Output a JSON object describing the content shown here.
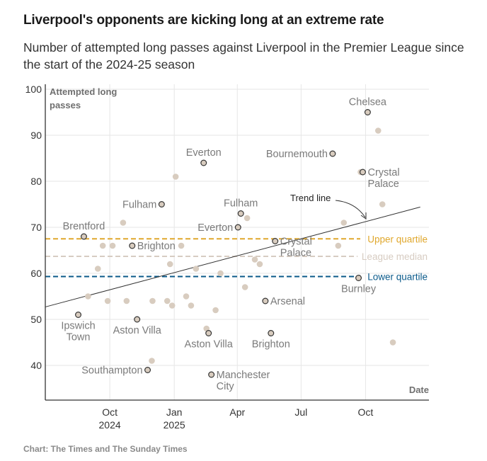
{
  "title": "Liverpool's opponents are kicking long at an extreme rate",
  "subtitle": "Number of attempted long passes against Liverpool in the Premier League since the start of the 2024-25 season",
  "source": "Chart: The Times and The Sunday Times",
  "colors": {
    "dot_fill": "#d8ccbf",
    "dot_stroke": "#333333",
    "grid": "#e6e6e6",
    "axis": "#333333",
    "upper_quartile": "#e0a82e",
    "median": "#d7ccc2",
    "lower_quartile": "#0b5a8a",
    "trend": "#333333",
    "label": "#7a7a7a"
  },
  "chart_data": {
    "type": "scatter",
    "title": "Liverpool's opponents are kicking long at an extreme rate",
    "xlabel": "Date",
    "ylabel": "Attempted long passes",
    "ylim": [
      33,
      100
    ],
    "xlim": [
      "2024-07-01",
      "2025-12-18"
    ],
    "y_ticks": [
      40,
      50,
      60,
      70,
      80,
      90,
      100
    ],
    "x_ticks": [
      {
        "date": "2024-10-01",
        "line1": "Oct",
        "line2": "2024"
      },
      {
        "date": "2025-01-01",
        "line1": "Jan",
        "line2": "2025"
      },
      {
        "date": "2025-04-01",
        "line1": "Apr",
        "line2": ""
      },
      {
        "date": "2025-07-01",
        "line1": "Jul",
        "line2": ""
      },
      {
        "date": "2025-10-01",
        "line1": "Oct",
        "line2": ""
      }
    ],
    "grid": true,
    "reference_lines": [
      {
        "name": "Upper quartile",
        "value": 67.5,
        "color_key": "upper_quartile"
      },
      {
        "name": "League median",
        "value": 63.7,
        "color_key": "median"
      },
      {
        "name": "Lower quartile",
        "value": 59.3,
        "color_key": "lower_quartile"
      }
    ],
    "trend_line": {
      "label": "Trend line",
      "start": {
        "date": "2024-07-01",
        "value": 52.7
      },
      "end": {
        "date": "2025-12-18",
        "value": 74.4
      }
    },
    "highlighted": [
      {
        "team": "Brentford",
        "date": "2024-08-25",
        "value": 68,
        "label_pos": "above"
      },
      {
        "team": "Ipswich Town",
        "date": "2024-08-17",
        "value": 51,
        "label_pos": "below"
      },
      {
        "team": "Brighton",
        "date": "2024-11-02",
        "value": 66,
        "label_pos": "right"
      },
      {
        "team": "Aston Villa",
        "date": "2024-11-09",
        "value": 50,
        "label_pos": "below"
      },
      {
        "team": "Southampton",
        "date": "2024-11-24",
        "value": 39,
        "label_pos": "left"
      },
      {
        "team": "Fulham",
        "date": "2024-12-14",
        "value": 75,
        "label_pos": "left"
      },
      {
        "team": "Everton",
        "date": "2025-02-12",
        "value": 84,
        "label_pos": "above"
      },
      {
        "team": "Aston Villa",
        "date": "2025-02-19",
        "value": 47,
        "label_pos": "below"
      },
      {
        "team": "Manchester City",
        "date": "2025-02-23",
        "value": 38,
        "label_pos": "right"
      },
      {
        "team": "Everton",
        "date": "2025-04-02",
        "value": 70,
        "label_pos": "left"
      },
      {
        "team": "Fulham",
        "date": "2025-04-06",
        "value": 73,
        "label_pos": "above"
      },
      {
        "team": "Arsenal",
        "date": "2025-05-11",
        "value": 54,
        "label_pos": "right"
      },
      {
        "team": "Brighton",
        "date": "2025-05-19",
        "value": 47,
        "label_pos": "below"
      },
      {
        "team": "Crystal Palace",
        "date": "2025-05-25",
        "value": 67,
        "label_pos": "right"
      },
      {
        "team": "Bournemouth",
        "date": "2025-08-15",
        "value": 86,
        "label_pos": "left"
      },
      {
        "team": "Burnley",
        "date": "2025-09-21",
        "value": 59,
        "label_pos": "below"
      },
      {
        "team": "Crystal Palace",
        "date": "2025-09-27",
        "value": 82,
        "label_pos": "right"
      },
      {
        "team": "Chelsea",
        "date": "2025-10-04",
        "value": 95,
        "label_pos": "above"
      }
    ],
    "other_points": [
      {
        "date": "2024-08-31",
        "value": 55
      },
      {
        "date": "2024-09-14",
        "value": 61
      },
      {
        "date": "2024-09-21",
        "value": 66
      },
      {
        "date": "2024-09-28",
        "value": 54
      },
      {
        "date": "2024-10-05",
        "value": 66
      },
      {
        "date": "2024-10-20",
        "value": 71
      },
      {
        "date": "2024-10-25",
        "value": 54
      },
      {
        "date": "2024-11-30",
        "value": 41
      },
      {
        "date": "2024-12-01",
        "value": 54
      },
      {
        "date": "2024-12-22",
        "value": 54
      },
      {
        "date": "2024-12-26",
        "value": 62
      },
      {
        "date": "2024-12-29",
        "value": 53
      },
      {
        "date": "2025-01-03",
        "value": 81
      },
      {
        "date": "2025-01-11",
        "value": 66
      },
      {
        "date": "2025-01-18",
        "value": 55
      },
      {
        "date": "2025-01-25",
        "value": 53
      },
      {
        "date": "2025-02-01",
        "value": 61
      },
      {
        "date": "2025-02-16",
        "value": 48
      },
      {
        "date": "2025-03-01",
        "value": 52
      },
      {
        "date": "2025-03-08",
        "value": 60
      },
      {
        "date": "2025-04-12",
        "value": 57
      },
      {
        "date": "2025-04-15",
        "value": 72
      },
      {
        "date": "2025-04-26",
        "value": 63
      },
      {
        "date": "2025-05-03",
        "value": 62
      },
      {
        "date": "2025-08-23",
        "value": 66
      },
      {
        "date": "2025-08-31",
        "value": 71
      },
      {
        "date": "2025-09-24",
        "value": 82
      },
      {
        "date": "2025-10-19",
        "value": 91
      },
      {
        "date": "2025-10-25",
        "value": 75
      },
      {
        "date": "2025-11-09",
        "value": 45
      }
    ]
  }
}
